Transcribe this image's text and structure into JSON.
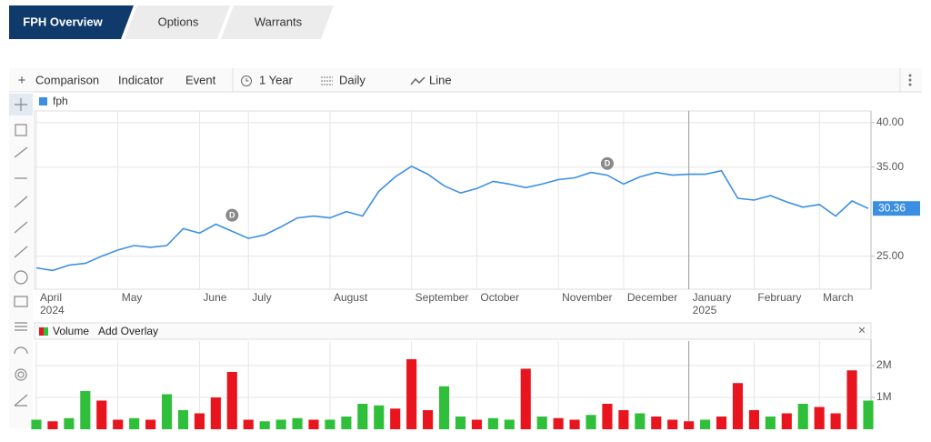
{
  "tabs": [
    "FPH Overview",
    "Options",
    "Warrants"
  ],
  "toolbar": {
    "add": "+",
    "items": [
      "Comparison",
      "Indicator",
      "Event"
    ],
    "range": "1 Year",
    "interval": "Daily",
    "style": "Line"
  },
  "volume_panel": {
    "add_overlay": "Add Overlay",
    "close": "×"
  },
  "chart_data": [
    {
      "type": "line",
      "categories": [
        "April",
        null,
        null,
        null,
        null,
        "May",
        null,
        null,
        null,
        null,
        "June",
        null,
        null,
        "July",
        null,
        null,
        null,
        null,
        "August",
        null,
        null,
        null,
        null,
        "September",
        null,
        null,
        null,
        "October",
        null,
        null,
        null,
        null,
        "November",
        null,
        null,
        null,
        "December",
        null,
        null,
        null,
        "January",
        null,
        null,
        null,
        "February",
        null,
        null,
        null,
        "March",
        null,
        null,
        null
      ],
      "year_labels": [
        "2024",
        null,
        null,
        null,
        null,
        null,
        null,
        null,
        null,
        null,
        null,
        null,
        null,
        null,
        null,
        null,
        null,
        null,
        null,
        null,
        null,
        null,
        null,
        null,
        null,
        null,
        null,
        null,
        null,
        null,
        null,
        null,
        null,
        null,
        null,
        null,
        null,
        null,
        null,
        null,
        "2025",
        null,
        null,
        null,
        null,
        null,
        null,
        null,
        null,
        null,
        null,
        null
      ],
      "series": [
        {
          "name": "fph",
          "color": "#3b8fe3",
          "values": [
            23.7,
            23.4,
            24.0,
            24.2,
            25.0,
            25.7,
            26.2,
            26.0,
            26.2,
            28.1,
            27.6,
            28.6,
            27.8,
            27.0,
            27.4,
            28.3,
            29.3,
            29.5,
            29.3,
            30.0,
            29.5,
            32.3,
            33.9,
            35.1,
            34.2,
            32.9,
            32.1,
            32.6,
            33.4,
            33.1,
            32.7,
            33.1,
            33.6,
            33.8,
            34.4,
            34.1,
            33.1,
            33.9,
            34.4,
            34.1,
            34.2,
            34.2,
            34.6,
            31.5,
            31.3,
            31.8,
            31.1,
            30.5,
            30.8,
            29.5,
            31.2,
            30.36
          ]
        }
      ],
      "annotations": [
        {
          "text": "D",
          "index": 12,
          "y": 29.6
        },
        {
          "text": "D",
          "index": 35,
          "y": 35.4
        }
      ],
      "ylim": [
        21.3,
        41.3
      ],
      "yticks": [
        {
          "value": 25,
          "label": "25.00"
        },
        {
          "value": 35,
          "label": "35.00"
        },
        {
          "value": 40,
          "label": "40.00"
        }
      ],
      "grid": true
    },
    {
      "type": "bar",
      "series": [
        {
          "name": "Volume",
          "values": [
            300000,
            250000,
            350000,
            1200000,
            900000,
            300000,
            350000,
            300000,
            1100000,
            600000,
            500000,
            1000000,
            1800000,
            300000,
            250000,
            300000,
            350000,
            300000,
            300000,
            400000,
            800000,
            750000,
            650000,
            2200000,
            600000,
            1350000,
            400000,
            300000,
            350000,
            300000,
            1900000,
            400000,
            350000,
            300000,
            450000,
            800000,
            600000,
            500000,
            400000,
            300000,
            250000,
            300000,
            400000,
            1450000,
            600000,
            400000,
            500000,
            800000,
            700000,
            500000,
            1850000,
            900000
          ],
          "colors": [
            "#2fbf3a",
            "#e8141e",
            "#2fbf3a",
            "#2fbf3a",
            "#e8141e",
            "#e8141e",
            "#2fbf3a",
            "#e8141e",
            "#2fbf3a",
            "#2fbf3a",
            "#e8141e",
            "#e8141e",
            "#e8141e",
            "#e8141e",
            "#2fbf3a",
            "#2fbf3a",
            "#2fbf3a",
            "#e8141e",
            "#2fbf3a",
            "#2fbf3a",
            "#2fbf3a",
            "#2fbf3a",
            "#e8141e",
            "#e8141e",
            "#e8141e",
            "#2fbf3a",
            "#2fbf3a",
            "#e8141e",
            "#2fbf3a",
            "#2fbf3a",
            "#e8141e",
            "#2fbf3a",
            "#e8141e",
            "#e8141e",
            "#2fbf3a",
            "#e8141e",
            "#e8141e",
            "#2fbf3a",
            "#e8141e",
            "#e8141e",
            "#e8141e",
            "#2fbf3a",
            "#e8141e",
            "#e8141e",
            "#e8141e",
            "#2fbf3a",
            "#e8141e",
            "#2fbf3a",
            "#e8141e",
            "#e8141e",
            "#e8141e",
            "#2fbf3a"
          ]
        }
      ],
      "ylim": [
        0,
        2770000
      ],
      "yticks": [
        {
          "value": 1000000,
          "label": "1M"
        },
        {
          "value": 2000000,
          "label": "2M"
        }
      ],
      "grid": true
    }
  ]
}
